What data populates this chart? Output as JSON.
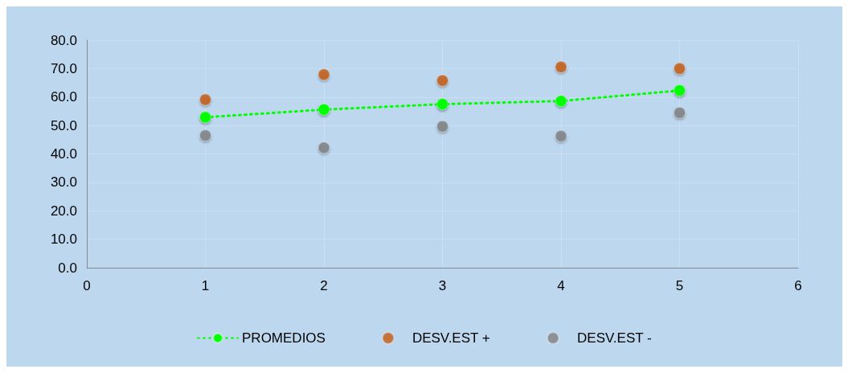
{
  "chart_data": {
    "type": "scatter",
    "x": [
      1,
      2,
      3,
      4,
      5
    ],
    "series": [
      {
        "name": "PROMEDIOS",
        "type": "line",
        "color": "#00ff00",
        "line_style": "dotted",
        "values": [
          52.9,
          55.6,
          57.5,
          58.6,
          62.3
        ]
      },
      {
        "name": "DESV.EST +",
        "color": "#c55a11",
        "values": [
          59.1,
          67.9,
          65.8,
          70.6,
          70.0
        ]
      },
      {
        "name": "DESV.EST -",
        "color": "#808080",
        "values": [
          46.5,
          42.2,
          49.7,
          46.3,
          54.5
        ]
      }
    ],
    "xlim": [
      0,
      6
    ],
    "xticks": [
      0,
      1,
      2,
      3,
      4,
      5,
      6
    ],
    "ylim": [
      0,
      80
    ],
    "yticks": [
      {
        "value": 0,
        "label": "0.0"
      },
      {
        "value": 10,
        "label": "10.0"
      },
      {
        "value": 20,
        "label": "20.0"
      },
      {
        "value": 30,
        "label": "30.0"
      },
      {
        "value": 40,
        "label": "40.0"
      },
      {
        "value": 50,
        "label": "50.0"
      },
      {
        "value": 60,
        "label": "60.0"
      },
      {
        "value": 70,
        "label": "70.0"
      },
      {
        "value": 80,
        "label": "80.0"
      }
    ],
    "grid": true,
    "legend": "bottom",
    "marker": "circle"
  }
}
